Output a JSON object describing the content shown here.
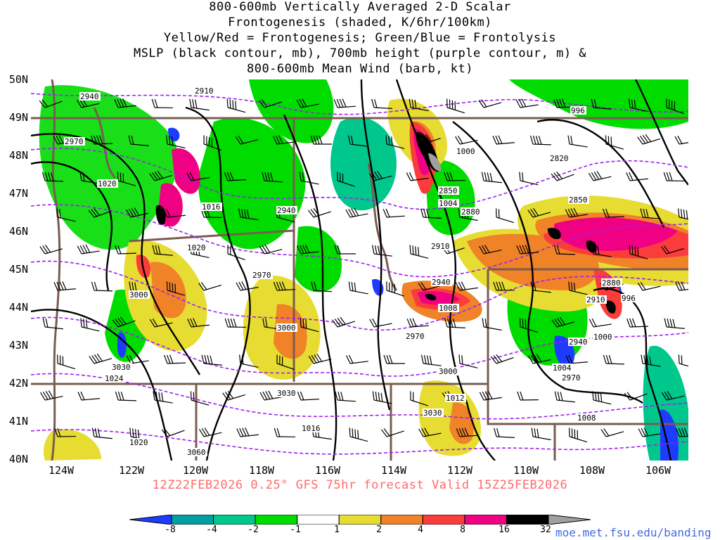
{
  "title_lines": [
    "800-600mb Vertically Averaged 2-D Scalar",
    "Frontogenesis (shaded, K/6hr/100km)",
    "Yellow/Red = Frontogenesis;  Green/Blue = Frontolysis",
    "MSLP (black contour, mb), 700mb height (purple contour, m) &",
    "800-600mb Mean Wind (barb, kt)"
  ],
  "lat_labels": [
    "50N",
    "49N",
    "48N",
    "47N",
    "46N",
    "45N",
    "44N",
    "43N",
    "42N",
    "41N",
    "40N"
  ],
  "lon_labels": [
    "124W",
    "122W",
    "120W",
    "118W",
    "116W",
    "114W",
    "112W",
    "110W",
    "108W",
    "106W"
  ],
  "footer": "12Z22FEB2026 0.25° GFS 75hr forecast Valid 15Z25FEB2026",
  "credit": "moe.met.fsu.edu/banding",
  "colorbar": {
    "labels": [
      "-8",
      "-4",
      "-2",
      "-1",
      "1",
      "2",
      "4",
      "8",
      "16",
      "32"
    ],
    "colors": [
      "#1e3cff",
      "#00a0a0",
      "#00c88c",
      "#00dc00",
      "#ffffff",
      "#e6dc32",
      "#f08228",
      "#fa3c3c",
      "#f00082",
      "#000000",
      "#a0a0a0"
    ]
  },
  "contour_labels": [
    {
      "text": "2940"
    },
    {
      "text": "2970"
    },
    {
      "text": "1020"
    },
    {
      "text": "2910"
    },
    {
      "text": "1016"
    },
    {
      "text": "2940"
    },
    {
      "text": "1020"
    },
    {
      "text": "2970"
    },
    {
      "text": "3000"
    },
    {
      "text": "3000"
    },
    {
      "text": "3030"
    },
    {
      "text": "1024"
    },
    {
      "text": "3030"
    },
    {
      "text": "1016"
    },
    {
      "text": "1020"
    },
    {
      "text": "3060"
    },
    {
      "text": "996"
    },
    {
      "text": "1000"
    },
    {
      "text": "2820"
    },
    {
      "text": "2850"
    },
    {
      "text": "1004"
    },
    {
      "text": "2880"
    },
    {
      "text": "2850"
    },
    {
      "text": "2910"
    },
    {
      "text": "2940"
    },
    {
      "text": "1008"
    },
    {
      "text": "2970"
    },
    {
      "text": "3000"
    },
    {
      "text": "1012"
    },
    {
      "text": "3030"
    },
    {
      "text": "2880"
    },
    {
      "text": "2910"
    },
    {
      "text": "996"
    },
    {
      "text": "2940"
    },
    {
      "text": "1000"
    },
    {
      "text": "1004"
    },
    {
      "text": "2970"
    },
    {
      "text": "1008"
    }
  ]
}
